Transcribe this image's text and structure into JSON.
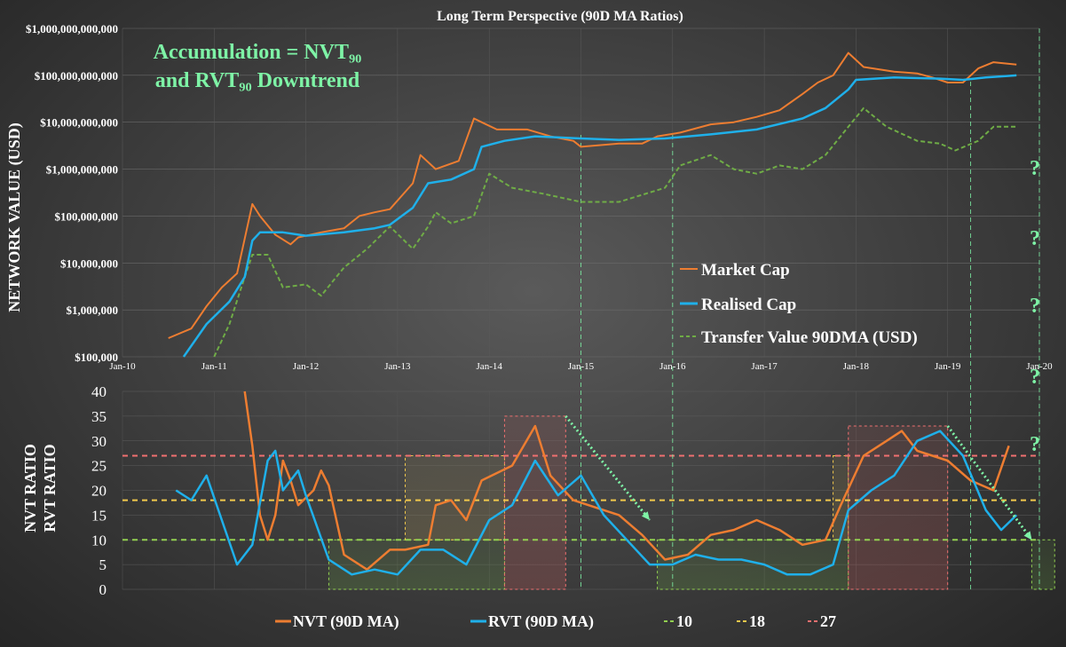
{
  "colors": {
    "nvt": "#ed7d31",
    "rvt": "#1fb0ea",
    "transfer": "#6fac46",
    "l10": "#92d050",
    "l18": "#f2c94c",
    "l27": "#f07070",
    "annotation": "#7ef3a6",
    "axis_text": "#ffffff"
  },
  "chart_data": [
    {
      "type": "line",
      "title": "Long Term Perspective (90D MA Ratios)",
      "annotation": [
        "Accumulation = NVT₉₀",
        "and RVT₉₀ Downtrend"
      ],
      "ylabel": "NETWORK VALUE (USD)",
      "yscale": "log",
      "ylim": [
        100000,
        1000000000000
      ],
      "y_ticks": [
        "$100,000",
        "$1,000,000",
        "$10,000,000",
        "$100,000,000",
        "$1,000,000,000",
        "$10,000,000,000",
        "$100,000,000,000",
        "$1,000,000,000,000"
      ],
      "x_ticks": [
        "Jan-10",
        "Jan-11",
        "Jan-12",
        "Jan-13",
        "Jan-14",
        "Jan-15",
        "Jan-16",
        "Jan-17",
        "Jan-18",
        "Jan-19",
        "Jan-20"
      ],
      "legend_position": "right",
      "question_marks": [
        "?",
        "?",
        "?"
      ],
      "series": [
        {
          "name": "Market Cap",
          "color_key": "nvt",
          "dash": false,
          "points": [
            [
              "2010-07",
              250000
            ],
            [
              "2010-10",
              400000
            ],
            [
              "2010-12",
              1200000
            ],
            [
              "2011-02",
              3000000
            ],
            [
              "2011-04",
              6000000
            ],
            [
              "2011-06",
              180000000
            ],
            [
              "2011-07",
              100000000
            ],
            [
              "2011-09",
              40000000
            ],
            [
              "2011-11",
              25000000
            ],
            [
              "2011-12",
              35000000
            ],
            [
              "2012-03",
              45000000
            ],
            [
              "2012-06",
              55000000
            ],
            [
              "2012-08",
              100000000
            ],
            [
              "2012-10",
              120000000
            ],
            [
              "2012-12",
              140000000
            ],
            [
              "2013-03",
              500000000
            ],
            [
              "2013-04",
              2000000000
            ],
            [
              "2013-06",
              1000000000
            ],
            [
              "2013-09",
              1500000000
            ],
            [
              "2013-11",
              12000000000
            ],
            [
              "2013-12",
              10000000000
            ],
            [
              "2014-02",
              7000000000
            ],
            [
              "2014-06",
              7000000000
            ],
            [
              "2014-09",
              5000000000
            ],
            [
              "2014-12",
              4000000000
            ],
            [
              "2015-01",
              3000000000
            ],
            [
              "2015-06",
              3500000000
            ],
            [
              "2015-09",
              3500000000
            ],
            [
              "2015-11",
              5000000000
            ],
            [
              "2016-02",
              6000000000
            ],
            [
              "2016-06",
              9000000000
            ],
            [
              "2016-09",
              10000000000
            ],
            [
              "2016-12",
              13000000000
            ],
            [
              "2017-03",
              18000000000
            ],
            [
              "2017-06",
              40000000000
            ],
            [
              "2017-08",
              70000000000
            ],
            [
              "2017-10",
              100000000000
            ],
            [
              "2017-12",
              300000000000
            ],
            [
              "2018-02",
              150000000000
            ],
            [
              "2018-06",
              120000000000
            ],
            [
              "2018-09",
              110000000000
            ],
            [
              "2018-11",
              90000000000
            ],
            [
              "2019-01",
              70000000000
            ],
            [
              "2019-03",
              70000000000
            ],
            [
              "2019-05",
              140000000000
            ],
            [
              "2019-07",
              190000000000
            ],
            [
              "2019-10",
              170000000000
            ]
          ]
        },
        {
          "name": "Realised Cap",
          "color_key": "rvt",
          "dash": false,
          "points": [
            [
              "2010-09",
              100000
            ],
            [
              "2010-12",
              500000
            ],
            [
              "2011-03",
              1500000
            ],
            [
              "2011-05",
              5000000
            ],
            [
              "2011-06",
              30000000
            ],
            [
              "2011-07",
              45000000
            ],
            [
              "2011-10",
              45000000
            ],
            [
              "2012-01",
              38000000
            ],
            [
              "2012-06",
              45000000
            ],
            [
              "2012-10",
              55000000
            ],
            [
              "2012-12",
              65000000
            ],
            [
              "2013-03",
              150000000
            ],
            [
              "2013-05",
              500000000
            ],
            [
              "2013-08",
              600000000
            ],
            [
              "2013-11",
              1000000000
            ],
            [
              "2013-12",
              3000000000
            ],
            [
              "2014-03",
              4000000000
            ],
            [
              "2014-07",
              5000000000
            ],
            [
              "2015-01",
              4500000000
            ],
            [
              "2015-06",
              4200000000
            ],
            [
              "2015-12",
              4500000000
            ],
            [
              "2016-06",
              5500000000
            ],
            [
              "2016-12",
              7000000000
            ],
            [
              "2017-06",
              12000000000
            ],
            [
              "2017-09",
              20000000000
            ],
            [
              "2017-12",
              50000000000
            ],
            [
              "2018-01",
              80000000000
            ],
            [
              "2018-06",
              90000000000
            ],
            [
              "2018-12",
              85000000000
            ],
            [
              "2019-03",
              80000000000
            ],
            [
              "2019-06",
              90000000000
            ],
            [
              "2019-10",
              100000000000
            ]
          ]
        },
        {
          "name": "Transfer Value 90DMA (USD)",
          "color_key": "transfer",
          "dash": true,
          "points": [
            [
              "2011-01",
              100000
            ],
            [
              "2011-03",
              500000
            ],
            [
              "2011-05",
              5000000
            ],
            [
              "2011-06",
              15000000
            ],
            [
              "2011-08",
              15000000
            ],
            [
              "2011-10",
              3000000
            ],
            [
              "2012-01",
              3500000
            ],
            [
              "2012-03",
              2000000
            ],
            [
              "2012-06",
              8000000
            ],
            [
              "2012-09",
              20000000
            ],
            [
              "2012-12",
              60000000
            ],
            [
              "2013-03",
              20000000
            ],
            [
              "2013-05",
              60000000
            ],
            [
              "2013-06",
              120000000
            ],
            [
              "2013-08",
              70000000
            ],
            [
              "2013-11",
              100000000
            ],
            [
              "2014-01",
              800000000
            ],
            [
              "2014-04",
              400000000
            ],
            [
              "2014-08",
              300000000
            ],
            [
              "2015-01",
              200000000
            ],
            [
              "2015-06",
              200000000
            ],
            [
              "2015-12",
              400000000
            ],
            [
              "2016-02",
              1200000000
            ],
            [
              "2016-06",
              2000000000
            ],
            [
              "2016-09",
              1000000000
            ],
            [
              "2016-12",
              800000000
            ],
            [
              "2017-03",
              1200000000
            ],
            [
              "2017-06",
              1000000000
            ],
            [
              "2017-09",
              2000000000
            ],
            [
              "2017-12",
              8000000000
            ],
            [
              "2018-02",
              20000000000
            ],
            [
              "2018-05",
              8000000000
            ],
            [
              "2018-09",
              4000000000
            ],
            [
              "2018-12",
              3500000000
            ],
            [
              "2019-02",
              2500000000
            ],
            [
              "2019-05",
              4000000000
            ],
            [
              "2019-07",
              8000000000
            ],
            [
              "2019-10",
              8000000000
            ]
          ]
        }
      ]
    },
    {
      "type": "line",
      "ylabel": [
        "NVT RATIO",
        "RVT RATIO"
      ],
      "ylim": [
        0,
        40
      ],
      "y_ticks": [
        "0",
        "5",
        "10",
        "15",
        "20",
        "25",
        "30",
        "35",
        "40"
      ],
      "thresholds": [
        {
          "name": "10",
          "value": 10,
          "color_key": "l10"
        },
        {
          "name": "18",
          "value": 18,
          "color_key": "l18"
        },
        {
          "name": "27",
          "value": 27,
          "color_key": "l27"
        }
      ],
      "legend_position": "bottom",
      "legend": [
        "NVT (90D MA)",
        "RVT (90D MA)",
        "10",
        "18",
        "27"
      ],
      "series": [
        {
          "name": "NVT (90D MA)",
          "color_key": "nvt",
          "points": [
            [
              "2011-05",
              40
            ],
            [
              "2011-06",
              29
            ],
            [
              "2011-07",
              15
            ],
            [
              "2011-08",
              10
            ],
            [
              "2011-09",
              15
            ],
            [
              "2011-10",
              26
            ],
            [
              "2011-11",
              22
            ],
            [
              "2011-12",
              17
            ],
            [
              "2012-02",
              20
            ],
            [
              "2012-03",
              24
            ],
            [
              "2012-04",
              21
            ],
            [
              "2012-06",
              7
            ],
            [
              "2012-09",
              4
            ],
            [
              "2012-12",
              8
            ],
            [
              "2013-02",
              8
            ],
            [
              "2013-05",
              9
            ],
            [
              "2013-06",
              17
            ],
            [
              "2013-08",
              18
            ],
            [
              "2013-10",
              14
            ],
            [
              "2013-12",
              22
            ],
            [
              "2014-04",
              25
            ],
            [
              "2014-07",
              33
            ],
            [
              "2014-09",
              23
            ],
            [
              "2014-12",
              18
            ],
            [
              "2015-06",
              15
            ],
            [
              "2015-09",
              11
            ],
            [
              "2015-12",
              6
            ],
            [
              "2016-03",
              7
            ],
            [
              "2016-06",
              11
            ],
            [
              "2016-09",
              12
            ],
            [
              "2016-12",
              14
            ],
            [
              "2017-03",
              12
            ],
            [
              "2017-06",
              9
            ],
            [
              "2017-09",
              10
            ],
            [
              "2017-11",
              17
            ],
            [
              "2018-02",
              27
            ],
            [
              "2018-05",
              30
            ],
            [
              "2018-07",
              32
            ],
            [
              "2018-09",
              28
            ],
            [
              "2018-11",
              27
            ],
            [
              "2019-01",
              26
            ],
            [
              "2019-04",
              22
            ],
            [
              "2019-07",
              20
            ],
            [
              "2019-09",
              29
            ]
          ]
        },
        {
          "name": "RVT (90D MA)",
          "color_key": "rvt",
          "points": [
            [
              "2010-08",
              20
            ],
            [
              "2010-10",
              18
            ],
            [
              "2010-12",
              23
            ],
            [
              "2011-02",
              14
            ],
            [
              "2011-04",
              5
            ],
            [
              "2011-06",
              9
            ],
            [
              "2011-08",
              26
            ],
            [
              "2011-09",
              28
            ],
            [
              "2011-10",
              20
            ],
            [
              "2011-12",
              24
            ],
            [
              "2012-01",
              19
            ],
            [
              "2012-04",
              6
            ],
            [
              "2012-07",
              3
            ],
            [
              "2012-10",
              4
            ],
            [
              "2013-01",
              3
            ],
            [
              "2013-04",
              8
            ],
            [
              "2013-07",
              8
            ],
            [
              "2013-10",
              5
            ],
            [
              "2014-01",
              14
            ],
            [
              "2014-04",
              17
            ],
            [
              "2014-07",
              26
            ],
            [
              "2014-10",
              19
            ],
            [
              "2015-01",
              23
            ],
            [
              "2015-04",
              15
            ],
            [
              "2015-07",
              10
            ],
            [
              "2015-10",
              5
            ],
            [
              "2016-01",
              5
            ],
            [
              "2016-04",
              7
            ],
            [
              "2016-07",
              6
            ],
            [
              "2016-10",
              6
            ],
            [
              "2017-01",
              5
            ],
            [
              "2017-04",
              3
            ],
            [
              "2017-07",
              3
            ],
            [
              "2017-10",
              5
            ],
            [
              "2017-12",
              16
            ],
            [
              "2018-03",
              20
            ],
            [
              "2018-06",
              23
            ],
            [
              "2018-09",
              30
            ],
            [
              "2018-12",
              32
            ],
            [
              "2019-03",
              27
            ],
            [
              "2019-06",
              16
            ],
            [
              "2019-08",
              12
            ],
            [
              "2019-10",
              15
            ]
          ]
        }
      ]
    }
  ]
}
